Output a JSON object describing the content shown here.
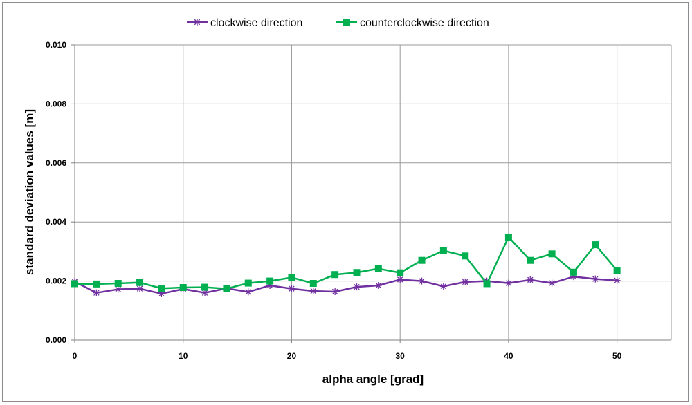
{
  "chart_data": {
    "type": "line",
    "xlabel": "alpha angle [grad]",
    "ylabel": "standard deviation values [m]",
    "xlim": [
      0,
      55
    ],
    "ylim": [
      0,
      0.01
    ],
    "x_ticks": [
      0,
      10,
      20,
      30,
      40,
      50
    ],
    "x_tick_labels": [
      "0",
      "10",
      "20",
      "30",
      "40",
      "50"
    ],
    "y_ticks": [
      0,
      0.002,
      0.004,
      0.006,
      0.008,
      0.01
    ],
    "y_tick_labels": [
      "0.000",
      "0.002",
      "0.004",
      "0.006",
      "0.008",
      "0.010"
    ],
    "grid": true,
    "legend_position": "top",
    "x": [
      0,
      2,
      4,
      6,
      8,
      10,
      12,
      14,
      16,
      18,
      20,
      22,
      24,
      26,
      28,
      30,
      32,
      34,
      36,
      38,
      40,
      42,
      44,
      46,
      48,
      50
    ],
    "series": [
      {
        "name": "clockwise direction",
        "color": "#7030a0",
        "marker": "asterisk",
        "values": [
          0.00198,
          0.0016,
          0.00172,
          0.00174,
          0.00157,
          0.00173,
          0.0016,
          0.00175,
          0.00163,
          0.00185,
          0.00174,
          0.00166,
          0.00164,
          0.0018,
          0.00185,
          0.00205,
          0.002,
          0.00182,
          0.00197,
          0.002,
          0.00193,
          0.00204,
          0.00193,
          0.00215,
          0.00207,
          0.00202
        ]
      },
      {
        "name": "counterclockwise direction",
        "color": "#00b050",
        "marker": "square",
        "values": [
          0.00191,
          0.0019,
          0.00192,
          0.00195,
          0.00175,
          0.00178,
          0.00179,
          0.00174,
          0.00193,
          0.002,
          0.00212,
          0.00192,
          0.00222,
          0.00229,
          0.00242,
          0.00228,
          0.0027,
          0.00303,
          0.00285,
          0.00191,
          0.00349,
          0.0027,
          0.00292,
          0.0023,
          0.00323,
          0.00236
        ]
      }
    ]
  }
}
